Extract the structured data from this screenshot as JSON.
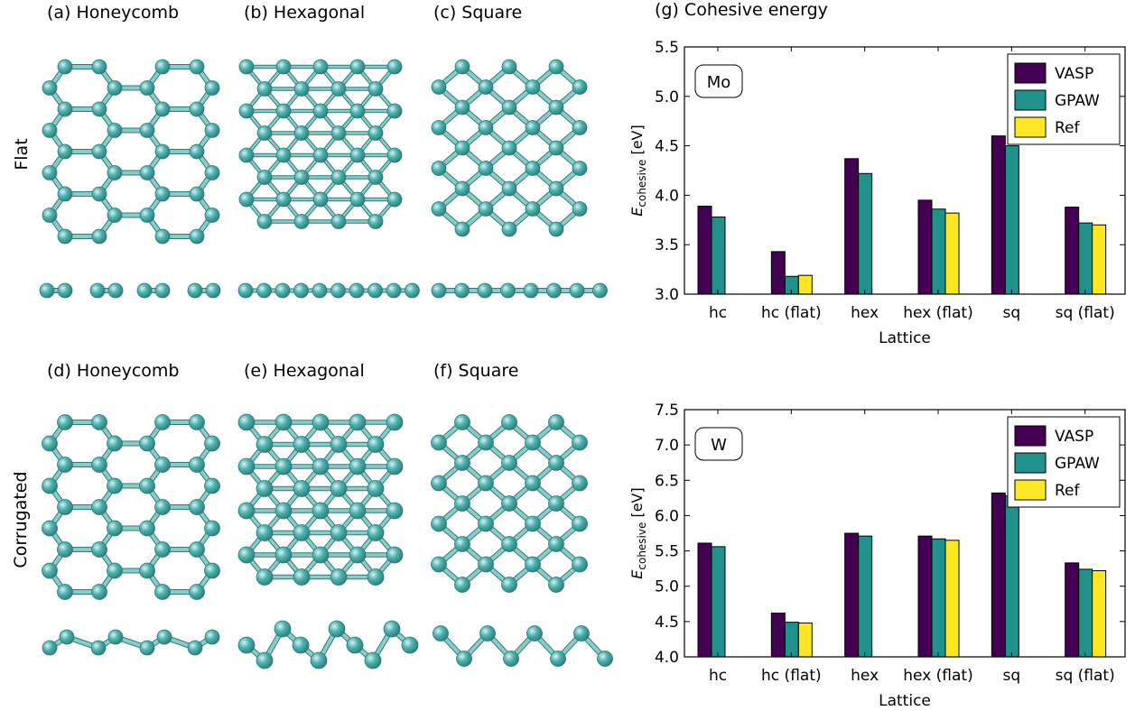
{
  "panels": [
    {
      "title": "(a) Honeycomb"
    },
    {
      "title": "(b) Hexagonal"
    },
    {
      "title": "(c) Square"
    },
    {
      "title": "(d) Honeycomb"
    },
    {
      "title": "(e) Hexagonal"
    },
    {
      "title": "(f) Square"
    }
  ],
  "row_labels": {
    "top": "Flat",
    "bottom": "Corrugated"
  },
  "chart_title": "(g) Cohesive energy",
  "colors": {
    "atom": "#4fb3b0",
    "atom_dark": "#2a7d7a",
    "bond": "#8ccbc8",
    "vasp": "#440154",
    "gpaw": "#21918c",
    "ref": "#fde725"
  },
  "chart_data": [
    {
      "type": "bar",
      "element_label": "Mo",
      "categories": [
        "hc",
        "hc (flat)",
        "hex",
        "hex (flat)",
        "sq",
        "sq (flat)"
      ],
      "series": [
        {
          "name": "VASP",
          "values": [
            3.89,
            3.43,
            4.37,
            3.95,
            4.6,
            3.88
          ]
        },
        {
          "name": "GPAW",
          "values": [
            3.78,
            3.18,
            4.22,
            3.86,
            4.5,
            3.72
          ]
        },
        {
          "name": "Ref",
          "values": [
            null,
            3.19,
            null,
            3.82,
            null,
            3.7
          ]
        }
      ],
      "ylim": [
        3.0,
        5.5
      ],
      "yticks": [
        "3.0",
        "3.5",
        "4.0",
        "4.5",
        "5.0",
        "5.5"
      ],
      "ylabel": "E_cohesive [eV]",
      "xlabel": "Lattice",
      "legend": "top-right"
    },
    {
      "type": "bar",
      "element_label": "W",
      "categories": [
        "hc",
        "hc (flat)",
        "hex",
        "hex (flat)",
        "sq",
        "sq (flat)"
      ],
      "series": [
        {
          "name": "VASP",
          "values": [
            5.61,
            4.62,
            5.75,
            5.71,
            6.32,
            5.33
          ]
        },
        {
          "name": "GPAW",
          "values": [
            5.56,
            4.49,
            5.71,
            5.67,
            6.28,
            5.24
          ]
        },
        {
          "name": "Ref",
          "values": [
            null,
            4.48,
            null,
            5.65,
            null,
            5.22
          ]
        }
      ],
      "ylim": [
        4.0,
        7.5
      ],
      "yticks": [
        "4.0",
        "4.5",
        "5.0",
        "5.5",
        "6.0",
        "6.5",
        "7.0",
        "7.5"
      ],
      "ylabel": "E_cohesive [eV]",
      "xlabel": "Lattice",
      "legend": "top-right"
    }
  ]
}
